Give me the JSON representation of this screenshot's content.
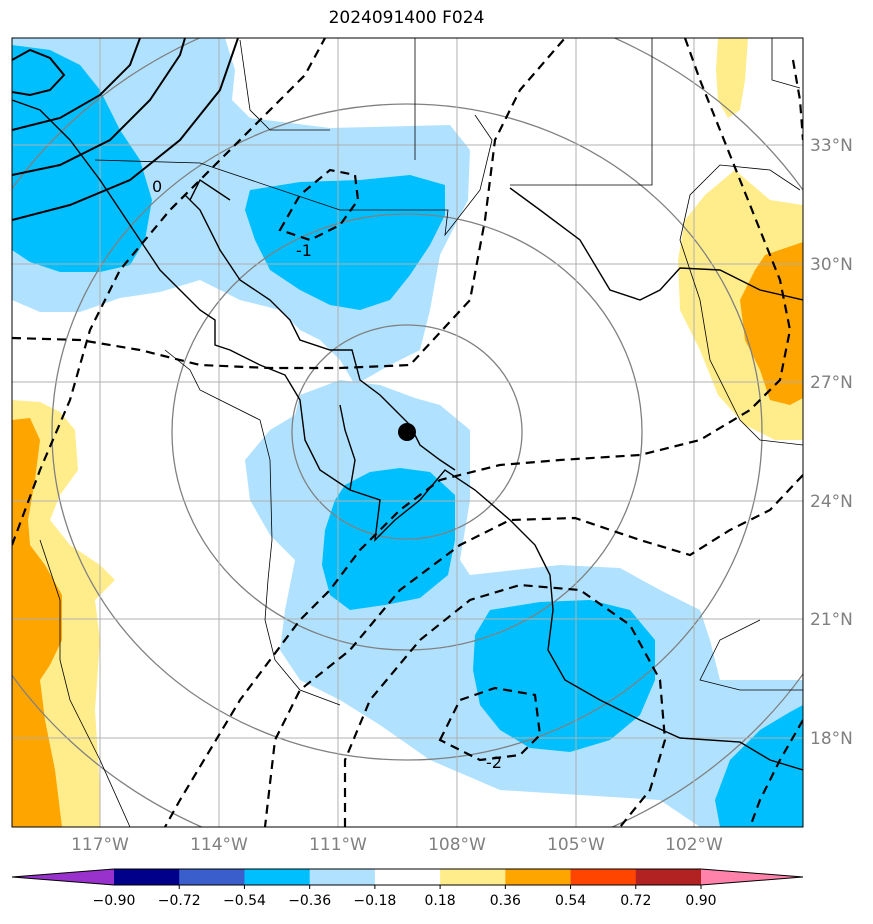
{
  "title": "2024091400 F024",
  "lat_labels": [
    "33°N",
    "30°N",
    "27°N",
    "24°N",
    "21°N",
    "18°N"
  ],
  "lon_labels": [
    "117°W",
    "114°W",
    "111°W",
    "108°W",
    "105°W",
    "102°W"
  ],
  "colorbar": {
    "ticks": [
      "−0.90",
      "−0.72",
      "−0.54",
      "−0.36",
      "−0.18",
      "0.18",
      "0.36",
      "0.54",
      "0.72",
      "0.90"
    ],
    "colors": [
      "#9932cc",
      "#00008b",
      "#3a5fcd",
      "#00bfff",
      "#b0e2ff",
      "#ffffff",
      "#ffec8b",
      "#ffa500",
      "#ff4500",
      "#b22222",
      "#ff82ab"
    ]
  },
  "contour_labels": [
    "0",
    "-1",
    "-2"
  ],
  "colors": {
    "light_blue": "#b0e2ff",
    "blue": "#00bfff",
    "light_yellow": "#ffec8b",
    "orange": "#ffa500",
    "grid": "#b0b0b0",
    "range_rings": "#808080"
  },
  "center_marker": "storm-center-dot"
}
